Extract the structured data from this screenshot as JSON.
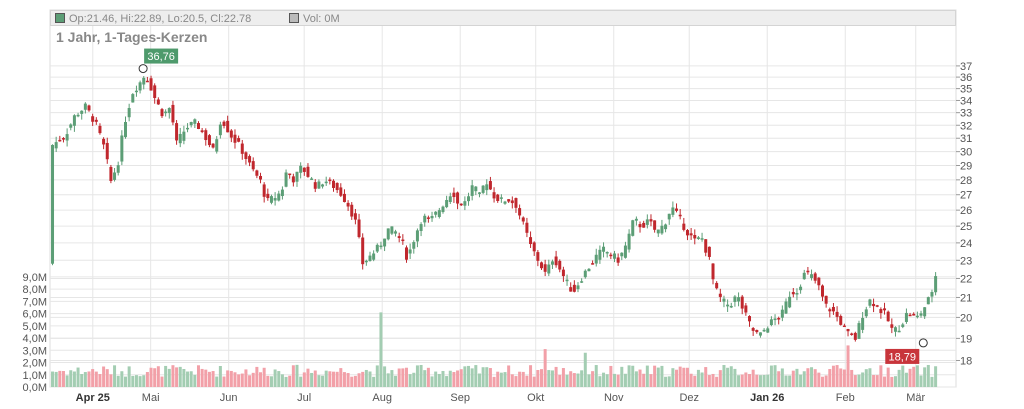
{
  "legend": {
    "ohlc_text": "Op:21.46, Hi:22.89, Lo:20.5, Cl:22.78",
    "vol_text": "Vol: 0M",
    "ohlc_swatch_color": "#5c9e76",
    "vol_swatch_color": "#bbbbbb"
  },
  "title": "1 Jahr, 1-Tages-Kerzen",
  "colors": {
    "up": "#5c9e76",
    "down": "#c0272d",
    "vol_up": "#a3cdb2",
    "vol_down": "#f2a0a8",
    "grid": "#e6e6e6",
    "axis_text": "#555555",
    "high_badge": "#4e9a6c",
    "low_badge": "#c8353b"
  },
  "chart_data": {
    "type": "candlestick",
    "title": "1 Jahr, 1-Tages-Kerzen",
    "price_axis": {
      "range": [
        17.5,
        38
      ],
      "ticks": [
        18,
        19,
        20,
        21,
        22,
        23,
        24,
        25,
        26,
        27,
        28,
        29,
        30,
        31,
        32,
        33,
        34,
        35,
        36,
        37
      ],
      "side": "right",
      "scale": "log"
    },
    "volume_axis": {
      "range": [
        0,
        9.4
      ],
      "unit": "M",
      "ticks": [
        "0,0M",
        "1,0M",
        "2,0M",
        "3,0M",
        "4,0M",
        "5,0M",
        "6,0M",
        "7,0M",
        "8,0M",
        "9,0M"
      ],
      "side": "left"
    },
    "x_ticks": [
      {
        "label": "Apr 25",
        "bold": true,
        "day": 7
      },
      {
        "label": "Mai",
        "bold": false,
        "day": 30
      },
      {
        "label": "Jun",
        "bold": false,
        "day": 61
      },
      {
        "label": "Jul",
        "bold": false,
        "day": 91
      },
      {
        "label": "Aug",
        "bold": false,
        "day": 122
      },
      {
        "label": "Sep",
        "bold": false,
        "day": 153
      },
      {
        "label": "Okt",
        "bold": false,
        "day": 183
      },
      {
        "label": "Nov",
        "bold": false,
        "day": 214
      },
      {
        "label": "Dez",
        "bold": false,
        "day": 244
      },
      {
        "label": "Jan 26",
        "bold": true,
        "day": 275
      },
      {
        "label": "Feb",
        "bold": false,
        "day": 306
      },
      {
        "label": "Mär",
        "bold": false,
        "day": 334
      }
    ],
    "x_domain": [
      -10,
      350
    ],
    "closes": [
      {
        "day": -9,
        "close": 30.5
      },
      {
        "day": -4,
        "close": 31.2
      },
      {
        "day": 0,
        "close": 32.8
      },
      {
        "day": 4,
        "close": 33.5
      },
      {
        "day": 8,
        "close": 32.2
      },
      {
        "day": 12,
        "close": 30.0
      },
      {
        "day": 14,
        "close": 27.8
      },
      {
        "day": 17,
        "close": 29.2
      },
      {
        "day": 20,
        "close": 32.5
      },
      {
        "day": 23,
        "close": 34.8
      },
      {
        "day": 26,
        "close": 35.6
      },
      {
        "day": 28,
        "close": 36.3
      },
      {
        "day": 30,
        "close": 35.2
      },
      {
        "day": 32,
        "close": 34.0
      },
      {
        "day": 35,
        "close": 32.8
      },
      {
        "day": 38,
        "close": 33.5
      },
      {
        "day": 40,
        "close": 30.5
      },
      {
        "day": 44,
        "close": 31.8
      },
      {
        "day": 48,
        "close": 32.2
      },
      {
        "day": 52,
        "close": 31.0
      },
      {
        "day": 55,
        "close": 30.0
      },
      {
        "day": 58,
        "close": 32.6
      },
      {
        "day": 62,
        "close": 31.2
      },
      {
        "day": 66,
        "close": 30.2
      },
      {
        "day": 70,
        "close": 28.8
      },
      {
        "day": 74,
        "close": 27.8
      },
      {
        "day": 76,
        "close": 26.5
      },
      {
        "day": 79,
        "close": 26.8
      },
      {
        "day": 82,
        "close": 27.2
      },
      {
        "day": 84,
        "close": 28.6
      },
      {
        "day": 87,
        "close": 28.0
      },
      {
        "day": 90,
        "close": 28.9
      },
      {
        "day": 93,
        "close": 28.2
      },
      {
        "day": 96,
        "close": 27.5
      },
      {
        "day": 99,
        "close": 28.0
      },
      {
        "day": 102,
        "close": 27.7
      },
      {
        "day": 106,
        "close": 27.0
      },
      {
        "day": 109,
        "close": 26.2
      },
      {
        "day": 112,
        "close": 25.0
      },
      {
        "day": 114,
        "close": 22.8
      },
      {
        "day": 117,
        "close": 23.2
      },
      {
        "day": 121,
        "close": 23.8
      },
      {
        "day": 124,
        "close": 24.8
      },
      {
        "day": 127,
        "close": 24.7
      },
      {
        "day": 130,
        "close": 24.0
      },
      {
        "day": 132,
        "close": 23.1
      },
      {
        "day": 135,
        "close": 24.4
      },
      {
        "day": 138,
        "close": 25.6
      },
      {
        "day": 141,
        "close": 25.3
      },
      {
        "day": 144,
        "close": 25.9
      },
      {
        "day": 147,
        "close": 26.6
      },
      {
        "day": 150,
        "close": 27.3
      },
      {
        "day": 152,
        "close": 26.4
      },
      {
        "day": 155,
        "close": 26.5
      },
      {
        "day": 158,
        "close": 27.6
      },
      {
        "day": 161,
        "close": 26.8
      },
      {
        "day": 163,
        "close": 28.1
      },
      {
        "day": 166,
        "close": 27.0
      },
      {
        "day": 169,
        "close": 26.6
      },
      {
        "day": 172,
        "close": 26.7
      },
      {
        "day": 175,
        "close": 26.4
      },
      {
        "day": 178,
        "close": 25.1
      },
      {
        "day": 181,
        "close": 23.8
      },
      {
        "day": 184,
        "close": 23.0
      },
      {
        "day": 187,
        "close": 22.2
      },
      {
        "day": 190,
        "close": 23.2
      },
      {
        "day": 193,
        "close": 22.4
      },
      {
        "day": 196,
        "close": 21.6
      },
      {
        "day": 198,
        "close": 21.3
      },
      {
        "day": 201,
        "close": 22.0
      },
      {
        "day": 204,
        "close": 22.6
      },
      {
        "day": 207,
        "close": 23.2
      },
      {
        "day": 210,
        "close": 23.6
      },
      {
        "day": 213,
        "close": 23.3
      },
      {
        "day": 216,
        "close": 23.0
      },
      {
        "day": 219,
        "close": 23.9
      },
      {
        "day": 222,
        "close": 25.4
      },
      {
        "day": 225,
        "close": 25.0
      },
      {
        "day": 228,
        "close": 25.3
      },
      {
        "day": 231,
        "close": 24.6
      },
      {
        "day": 234,
        "close": 25.1
      },
      {
        "day": 237,
        "close": 26.2
      },
      {
        "day": 240,
        "close": 25.5
      },
      {
        "day": 243,
        "close": 24.7
      },
      {
        "day": 246,
        "close": 24.1
      },
      {
        "day": 249,
        "close": 24.3
      },
      {
        "day": 252,
        "close": 23.0
      },
      {
        "day": 254,
        "close": 21.5
      },
      {
        "day": 257,
        "close": 20.8
      },
      {
        "day": 260,
        "close": 20.6
      },
      {
        "day": 263,
        "close": 21.1
      },
      {
        "day": 266,
        "close": 20.2
      },
      {
        "day": 269,
        "close": 19.4
      },
      {
        "day": 272,
        "close": 19.1
      },
      {
        "day": 275,
        "close": 19.6
      },
      {
        "day": 278,
        "close": 19.9
      },
      {
        "day": 281,
        "close": 20.2
      },
      {
        "day": 284,
        "close": 21.2
      },
      {
        "day": 287,
        "close": 21.4
      },
      {
        "day": 290,
        "close": 22.3
      },
      {
        "day": 292,
        "close": 22.2
      },
      {
        "day": 295,
        "close": 21.7
      },
      {
        "day": 298,
        "close": 20.6
      },
      {
        "day": 301,
        "close": 20.3
      },
      {
        "day": 304,
        "close": 19.8
      },
      {
        "day": 307,
        "close": 19.2
      },
      {
        "day": 310,
        "close": 19.0
      },
      {
        "day": 313,
        "close": 20.2
      },
      {
        "day": 316,
        "close": 20.9
      },
      {
        "day": 319,
        "close": 20.5
      },
      {
        "day": 322,
        "close": 20.1
      },
      {
        "day": 325,
        "close": 19.3
      },
      {
        "day": 328,
        "close": 19.6
      },
      {
        "day": 331,
        "close": 20.3
      },
      {
        "day": 334,
        "close": 19.9
      },
      {
        "day": 337,
        "close": 20.4
      },
      {
        "day": 340,
        "close": 21.1
      },
      {
        "day": 343,
        "close": 22.78
      }
    ],
    "volume_spikes": [
      {
        "day": 122,
        "value": 6.1
      },
      {
        "day": 187,
        "value": 3.1
      },
      {
        "day": 202,
        "value": 2.8
      },
      {
        "day": 307,
        "value": 3.4
      }
    ],
    "volume_base": 1.1,
    "annotations": [
      {
        "label": "36,76",
        "day": 27,
        "price": 36.76,
        "kind": "high"
      },
      {
        "label": "18,79",
        "day": 337,
        "price": 18.79,
        "kind": "low"
      }
    ]
  }
}
